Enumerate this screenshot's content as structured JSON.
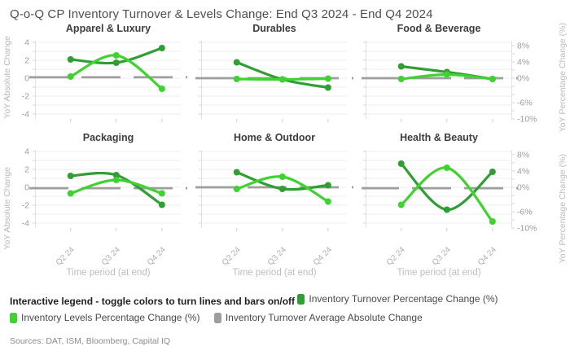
{
  "title": "Q-o-Q CP Inventory Turnover & Levels Change: End Q3 2024 - End Q4 2024",
  "colors": {
    "turnover": "#2f9e33",
    "levels": "#3fd230",
    "average": "#9e9e9e",
    "grid": "#ededed",
    "axis_line": "#e2e2e2",
    "tick_label": "#9c9c9c",
    "x_tick_label": "#b0b0b0",
    "axis_title": "#bdbdbd",
    "subplot_title": "#3d3d3d"
  },
  "axes": {
    "left_label": "YoY Absolute Change",
    "right_label": "YoY Percentage Change (%)",
    "left_ticks": [
      4,
      2,
      0,
      -2,
      -4
    ],
    "right_ticks_pct": [
      8,
      4,
      0,
      -6,
      -10
    ],
    "x_label": "Time period (at end)",
    "x_ticks": [
      "Q2 24",
      "Q3 24",
      "Q4 24"
    ]
  },
  "chart_data": [
    {
      "type": "line",
      "title": "Apparel & Luxury",
      "x": [
        "Q2 24",
        "Q3 24",
        "Q4 24"
      ],
      "series": [
        {
          "name": "Inventory Turnover Percentage Change (%)",
          "axis": "right_pct",
          "values": [
            4.6,
            3.8,
            7.4
          ]
        },
        {
          "name": "Inventory Levels Percentage Change (%)",
          "axis": "right_pct",
          "values": [
            0.4,
            5.6,
            -2.6
          ]
        },
        {
          "name": "Inventory Turnover Average Absolute Change",
          "axis": "left_abs",
          "values": [
            0.1,
            0.1,
            0.1
          ]
        }
      ],
      "ylim_left": [
        -4,
        4
      ],
      "ylim_right_pct": [
        -10,
        8
      ]
    },
    {
      "type": "line",
      "title": "Durables",
      "x": [
        "Q2 24",
        "Q3 24",
        "Q4 24"
      ],
      "series": [
        {
          "name": "Inventory Turnover Percentage Change (%)",
          "axis": "right_pct",
          "values": [
            3.9,
            -0.3,
            -2.3
          ]
        },
        {
          "name": "Inventory Levels Percentage Change (%)",
          "axis": "right_pct",
          "values": [
            -0.2,
            -0.3,
            -0.1
          ]
        },
        {
          "name": "Inventory Turnover Average Absolute Change",
          "axis": "left_abs",
          "values": [
            0.0,
            0.0,
            0.0
          ]
        }
      ],
      "ylim_left": [
        -4,
        4
      ],
      "ylim_right_pct": [
        -10,
        8
      ]
    },
    {
      "type": "line",
      "title": "Food & Beverage",
      "x": [
        "Q2 24",
        "Q3 24",
        "Q4 24"
      ],
      "series": [
        {
          "name": "Inventory Turnover Percentage Change (%)",
          "axis": "right_pct",
          "values": [
            2.9,
            1.5,
            -0.2
          ]
        },
        {
          "name": "Inventory Levels Percentage Change (%)",
          "axis": "right_pct",
          "values": [
            -0.2,
            0.9,
            -0.2
          ]
        },
        {
          "name": "Inventory Turnover Average Absolute Change",
          "axis": "left_abs",
          "values": [
            0.0,
            0.0,
            0.0
          ]
        }
      ],
      "ylim_left": [
        -4,
        4
      ],
      "ylim_right_pct": [
        -10,
        8
      ]
    },
    {
      "type": "line",
      "title": "Packaging",
      "x": [
        "Q2 24",
        "Q3 24",
        "Q4 24"
      ],
      "series": [
        {
          "name": "Inventory Turnover Percentage Change (%)",
          "axis": "right_pct",
          "values": [
            2.8,
            3.0,
            -4.3
          ]
        },
        {
          "name": "Inventory Levels Percentage Change (%)",
          "axis": "right_pct",
          "values": [
            -1.5,
            1.8,
            -1.5
          ]
        },
        {
          "name": "Inventory Turnover Average Absolute Change",
          "axis": "left_abs",
          "values": [
            -0.1,
            -0.1,
            -0.1
          ]
        }
      ],
      "ylim_left": [
        -4,
        4
      ],
      "ylim_right_pct": [
        -10,
        8
      ]
    },
    {
      "type": "line",
      "title": "Home & Outdoor",
      "x": [
        "Q2 24",
        "Q3 24",
        "Q4 24"
      ],
      "series": [
        {
          "name": "Inventory Turnover Percentage Change (%)",
          "axis": "right_pct",
          "values": [
            3.7,
            -0.4,
            0.5
          ]
        },
        {
          "name": "Inventory Levels Percentage Change (%)",
          "axis": "right_pct",
          "values": [
            -0.4,
            2.6,
            -3.5
          ]
        },
        {
          "name": "Inventory Turnover Average Absolute Change",
          "axis": "left_abs",
          "values": [
            0.0,
            0.0,
            0.0
          ]
        }
      ],
      "ylim_left": [
        -4,
        4
      ],
      "ylim_right_pct": [
        -10,
        8
      ]
    },
    {
      "type": "line",
      "title": "Health & Beauty",
      "x": [
        "Q2 24",
        "Q3 24",
        "Q4 24"
      ],
      "series": [
        {
          "name": "Inventory Turnover Percentage Change (%)",
          "axis": "right_pct",
          "values": [
            5.8,
            -5.5,
            3.8
          ]
        },
        {
          "name": "Inventory Levels Percentage Change (%)",
          "axis": "right_pct",
          "values": [
            -4.3,
            4.8,
            -8.4
          ]
        },
        {
          "name": "Inventory Turnover Average Absolute Change",
          "axis": "left_abs",
          "values": [
            -0.1,
            -0.1,
            -0.1
          ]
        }
      ],
      "ylim_left": [
        -4,
        4
      ],
      "ylim_right_pct": [
        -10,
        8
      ]
    }
  ],
  "legend": {
    "intro": "Interactive legend - toggle colors to turn lines and bars on/off",
    "items": [
      {
        "label": "Inventory Turnover Percentage Change (%)",
        "color": "#2f9e33"
      },
      {
        "label": "Inventory Levels Percentage Change (%)",
        "color": "#3fd230"
      },
      {
        "label": "Inventory Turnover Average Absolute Change",
        "color": "#9e9e9e"
      }
    ]
  },
  "sources": "Sources: DAT, ISM, Bloomberg, Capital IQ"
}
